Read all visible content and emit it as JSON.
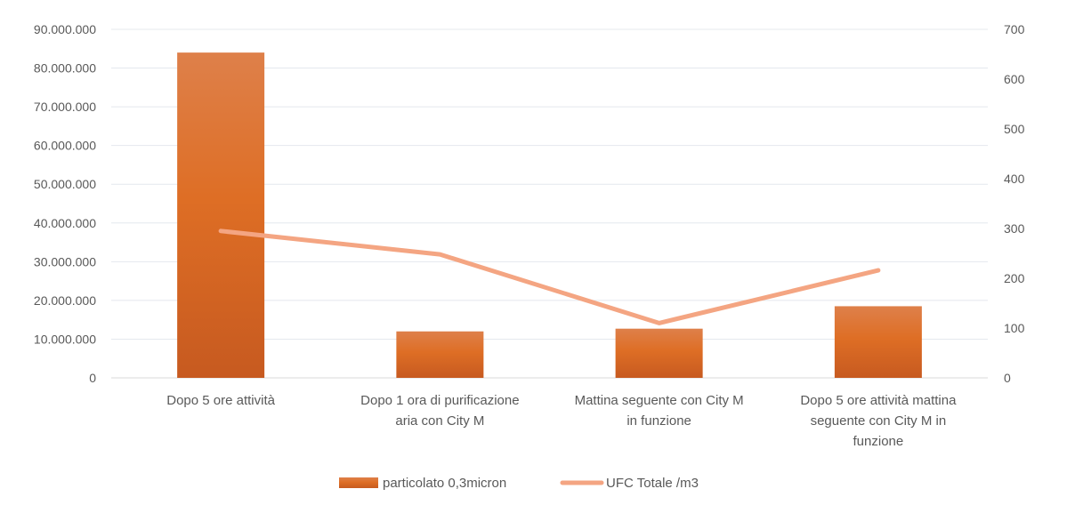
{
  "chart_data": {
    "type": "bar",
    "title": "",
    "categories": [
      [
        "Dopo 5 ore attività"
      ],
      [
        "Dopo 1 ora di purificazione",
        "aria con City M"
      ],
      [
        "Mattina seguente con City M",
        "in funzione"
      ],
      [
        "Dopo 5 ore attività mattina",
        "seguente con City M in",
        "funzione"
      ]
    ],
    "series": [
      {
        "name": "particolato 0,3micron",
        "type": "bar",
        "axis": "left",
        "color": "#E07027",
        "values": [
          84000000,
          12000000,
          12700000,
          18500000
        ]
      },
      {
        "name": "UFC Totale /m3",
        "type": "line",
        "axis": "right",
        "color": "#F4A582",
        "values": [
          295,
          248,
          110,
          216
        ]
      }
    ],
    "y_left": {
      "ylim": [
        0,
        90000000
      ],
      "ticks": [
        "0",
        "10.000.000",
        "20.000.000",
        "30.000.000",
        "40.000.000",
        "50.000.000",
        "60.000.000",
        "70.000.000",
        "80.000.000",
        "90.000.000"
      ]
    },
    "y_right": {
      "ylim": [
        0,
        700
      ],
      "ticks": [
        "0",
        "100",
        "200",
        "300",
        "400",
        "500",
        "600",
        "700"
      ]
    },
    "grid": true,
    "legend": "bottom"
  }
}
